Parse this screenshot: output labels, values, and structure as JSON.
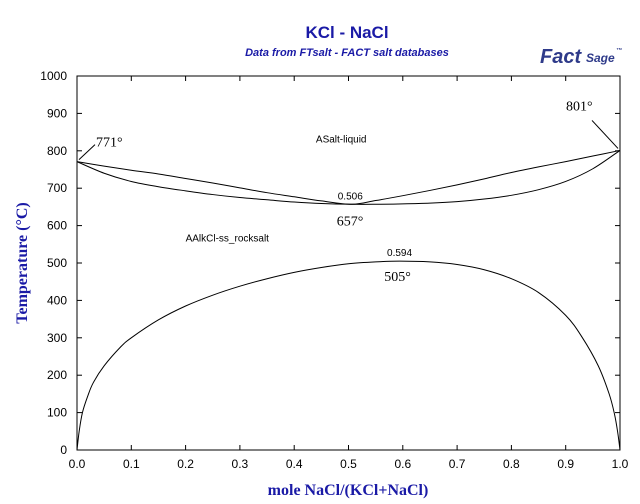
{
  "chart_data": {
    "type": "line",
    "title": "KCl - NaCl",
    "subtitle": "Data from FTsalt - FACT salt databases",
    "logo": {
      "main": "Fact",
      "suffix": "Sage",
      "mark": "™"
    },
    "xlabel": "mole NaCl/(KCl+NaCl)",
    "ylabel": "Temperature (°C)",
    "xlim": [
      0,
      1
    ],
    "ylim": [
      0,
      1000
    ],
    "xticks": [
      0.0,
      0.1,
      0.2,
      0.3,
      0.4,
      0.5,
      0.6,
      0.7,
      0.8,
      0.9,
      1.0
    ],
    "xtick_labels": [
      "0.0",
      "0.1",
      "0.2",
      "0.3",
      "0.4",
      "0.5",
      "0.6",
      "0.7",
      "0.8",
      "0.9",
      "1.0"
    ],
    "yticks": [
      0,
      100,
      200,
      300,
      400,
      500,
      600,
      700,
      800,
      900,
      1000
    ],
    "ytick_labels": [
      "0",
      "100",
      "200",
      "300",
      "400",
      "500",
      "600",
      "700",
      "800",
      "900",
      "1000"
    ],
    "grid": false,
    "series": [
      {
        "x": [
          0.0,
          0.05,
          0.1,
          0.15,
          0.2,
          0.25,
          0.3,
          0.35,
          0.4,
          0.45,
          0.506,
          0.55,
          0.6,
          0.65,
          0.7,
          0.75,
          0.8,
          0.85,
          0.9,
          0.95,
          1.0
        ],
        "y": [
          771,
          759,
          748,
          738,
          726,
          714,
          701,
          688,
          677,
          666,
          657,
          667,
          680,
          694,
          709,
          725,
          742,
          757,
          771,
          786,
          801
        ]
      },
      {
        "x": [
          0.0,
          0.05,
          0.1,
          0.15,
          0.2,
          0.25,
          0.3,
          0.35,
          0.4,
          0.45,
          0.506,
          0.55,
          0.6,
          0.65,
          0.7,
          0.75,
          0.8,
          0.85,
          0.9,
          0.95,
          1.0
        ],
        "y": [
          771,
          740,
          718,
          704,
          693,
          683,
          675,
          669,
          663,
          659,
          657,
          657,
          658,
          660,
          664,
          671,
          681,
          696,
          718,
          752,
          801
        ]
      },
      {
        "x": [
          0.0,
          0.004,
          0.01,
          0.02,
          0.03,
          0.05,
          0.08,
          0.1,
          0.15,
          0.2,
          0.25,
          0.3,
          0.35,
          0.4,
          0.45,
          0.5,
          0.55,
          0.594,
          0.65,
          0.7,
          0.75,
          0.8,
          0.85,
          0.9,
          0.93,
          0.96,
          0.98,
          0.99,
          0.996,
          1.0
        ],
        "y": [
          0,
          50,
          100,
          145,
          180,
          225,
          275,
          300,
          348,
          385,
          414,
          438,
          458,
          475,
          488,
          498,
          503,
          505,
          503,
          496,
          482,
          458,
          421,
          360,
          302,
          225,
          150,
          95,
          45,
          0
        ]
      }
    ],
    "annotations": [
      {
        "text": "ASalt-liquid",
        "x": 0.44,
        "y": 822
      },
      {
        "text": "AAlkCl-ss_rocksalt",
        "x": 0.2,
        "y": 558
      }
    ],
    "labels": [
      {
        "text": "771°",
        "x": 0.0,
        "y": 771
      },
      {
        "text": "801°",
        "x": 1.0,
        "y": 801
      },
      {
        "text": "657°",
        "x": 0.506,
        "y": 657
      },
      {
        "text": "0.506",
        "x": 0.506,
        "y": 657
      },
      {
        "text": "505°",
        "x": 0.594,
        "y": 505
      },
      {
        "text": "0.594",
        "x": 0.594,
        "y": 505
      }
    ]
  }
}
